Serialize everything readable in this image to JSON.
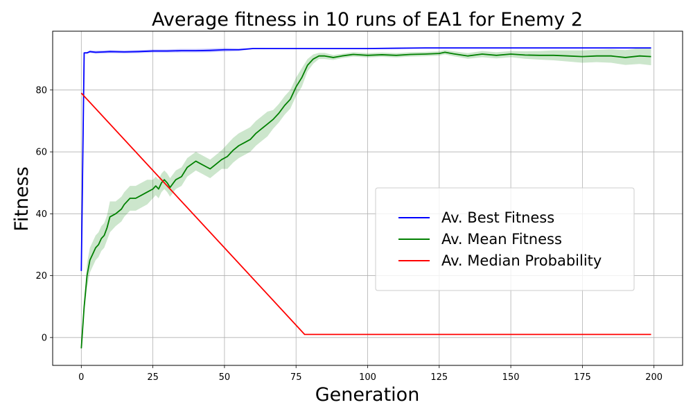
{
  "chart_data": {
    "type": "line",
    "title": "Average fitness in 10 runs of EA1 for Enemy 2",
    "xlabel": "Generation",
    "ylabel": "Fitness",
    "xlim": [
      -10,
      210
    ],
    "ylim": [
      -9,
      99
    ],
    "xticks": [
      0,
      25,
      50,
      75,
      100,
      125,
      150,
      175,
      200
    ],
    "yticks": [
      0,
      20,
      40,
      60,
      80
    ],
    "grid": true,
    "legend_position": "center-right",
    "series": [
      {
        "name": "Av. Best Fitness",
        "color": "#0000ff",
        "band_color": "#0000ff",
        "x": [
          0,
          1,
          2,
          3,
          5,
          8,
          10,
          15,
          20,
          25,
          30,
          35,
          40,
          45,
          50,
          55,
          60,
          70,
          80,
          90,
          100,
          110,
          120,
          130,
          140,
          150,
          160,
          170,
          180,
          190,
          199
        ],
        "y": [
          21.5,
          92,
          92,
          92.4,
          92.2,
          92.3,
          92.4,
          92.3,
          92.4,
          92.6,
          92.6,
          92.7,
          92.7,
          92.8,
          93,
          93,
          93.4,
          93.4,
          93.4,
          93.4,
          93.4,
          93.5,
          93.6,
          93.6,
          93.6,
          93.6,
          93.6,
          93.6,
          93.6,
          93.6,
          93.6
        ],
        "band": [
          0,
          0.2,
          0.3,
          0.4,
          0.5,
          0.5,
          0.5,
          0.5,
          0.5,
          0.5,
          0.5,
          0.6,
          0.6,
          0.6,
          0.6,
          0.4,
          0.2,
          0.1,
          0.1,
          0.1,
          0.1,
          0.1,
          0.1,
          0.1,
          0.1,
          0.1,
          0.1,
          0.1,
          0.1,
          0.1,
          0.1
        ]
      },
      {
        "name": "Av. Mean Fitness",
        "color": "#008000",
        "band_color": "#008000",
        "x": [
          0,
          1,
          2,
          3,
          4,
          5,
          6,
          7,
          8,
          9,
          10,
          12,
          14,
          15,
          17,
          19,
          21,
          23,
          25,
          26,
          27,
          28,
          29,
          30,
          31,
          33,
          35,
          37,
          40,
          42,
          44,
          45,
          47,
          49,
          51,
          53,
          55,
          57,
          59,
          61,
          63,
          65,
          67,
          69,
          71,
          73,
          75,
          77,
          79,
          81,
          83,
          85,
          88,
          91,
          95,
          100,
          105,
          110,
          115,
          120,
          125,
          127,
          130,
          135,
          140,
          145,
          150,
          155,
          160,
          165,
          170,
          175,
          180,
          185,
          190,
          195,
          199
        ],
        "y": [
          -3.5,
          10,
          20,
          25,
          27,
          29,
          30,
          32,
          33,
          35.5,
          39,
          40,
          41.5,
          43,
          45,
          45,
          46,
          47,
          48,
          49,
          48,
          50,
          51,
          50,
          48.5,
          51,
          52,
          55,
          57,
          56,
          55,
          54.5,
          56,
          57.5,
          58.5,
          60.5,
          62,
          63,
          64,
          66,
          67.5,
          69,
          70.5,
          72.5,
          75,
          77,
          81,
          84,
          88,
          90,
          91,
          91,
          90.5,
          91,
          91.5,
          91.2,
          91.4,
          91.2,
          91.5,
          91.6,
          91.8,
          92.2,
          91.7,
          91,
          91.6,
          91.2,
          91.6,
          91.3,
          91.2,
          91.2,
          91,
          90.8,
          91,
          91,
          90.5,
          91,
          90.8
        ],
        "band": [
          0,
          2,
          4,
          4,
          4,
          4,
          4,
          4,
          4,
          4,
          5,
          4,
          4,
          4,
          4,
          4,
          4,
          4,
          3,
          3,
          3,
          3,
          3,
          3,
          3,
          3,
          3,
          3,
          3,
          3,
          3,
          3,
          3,
          3,
          4,
          4,
          4,
          4,
          4,
          4,
          4,
          4,
          3,
          3,
          3,
          3,
          3,
          3,
          2,
          1.5,
          1,
          1,
          0.8,
          0.7,
          0.7,
          0.7,
          0.7,
          0.7,
          0.7,
          0.7,
          0.7,
          0.7,
          0.8,
          0.9,
          1,
          1,
          1,
          1.2,
          1.4,
          1.6,
          1.8,
          2,
          2,
          2.2,
          2.4,
          2.6,
          2.8
        ]
      },
      {
        "name": "Av. Median Probability",
        "color": "#ff0000",
        "x": [
          0,
          78,
          199
        ],
        "y": [
          79,
          1,
          1
        ]
      }
    ]
  }
}
